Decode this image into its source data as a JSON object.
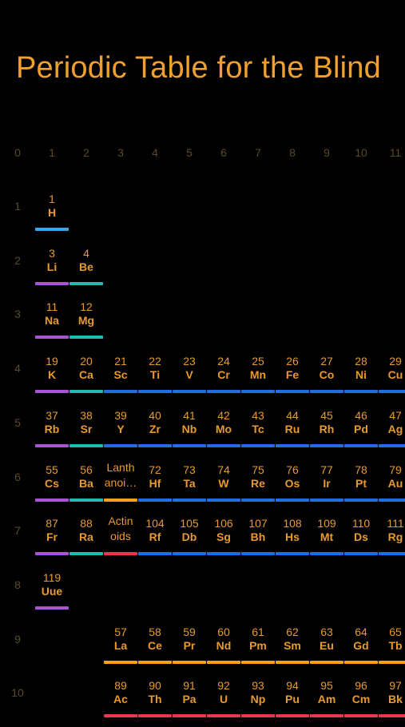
{
  "title": "Periodic Table for the Blind",
  "colors": {
    "alkali": "#a855d8",
    "alkaline": "#22b8b0",
    "hydrogen": "#3aa8e8",
    "transition": "#1f6fe0",
    "lanthanide": "#f5a020",
    "actinide": "#e8384a"
  },
  "columns": [
    "0",
    "1",
    "2",
    "3",
    "4",
    "5",
    "6",
    "7",
    "8",
    "9",
    "10",
    "11"
  ],
  "rows": [
    "1",
    "2",
    "3",
    "4",
    "5",
    "6",
    "7",
    "8",
    "9",
    "10"
  ],
  "cells": [
    {
      "row": 1,
      "col": 1,
      "num": "1",
      "sym": "H",
      "color": "#3aa8e8"
    },
    {
      "row": 2,
      "col": 1,
      "num": "3",
      "sym": "Li",
      "color": "#a855d8"
    },
    {
      "row": 2,
      "col": 2,
      "num": "4",
      "sym": "Be",
      "color": "#22b8b0"
    },
    {
      "row": 3,
      "col": 1,
      "num": "11",
      "sym": "Na",
      "color": "#a855d8"
    },
    {
      "row": 3,
      "col": 2,
      "num": "12",
      "sym": "Mg",
      "color": "#22b8b0"
    },
    {
      "row": 4,
      "col": 1,
      "num": "19",
      "sym": "K",
      "color": "#a855d8"
    },
    {
      "row": 4,
      "col": 2,
      "num": "20",
      "sym": "Ca",
      "color": "#22b8b0"
    },
    {
      "row": 4,
      "col": 3,
      "num": "21",
      "sym": "Sc",
      "color": "#1f6fe0"
    },
    {
      "row": 4,
      "col": 4,
      "num": "22",
      "sym": "Ti",
      "color": "#1f6fe0"
    },
    {
      "row": 4,
      "col": 5,
      "num": "23",
      "sym": "V",
      "color": "#1f6fe0"
    },
    {
      "row": 4,
      "col": 6,
      "num": "24",
      "sym": "Cr",
      "color": "#1f6fe0"
    },
    {
      "row": 4,
      "col": 7,
      "num": "25",
      "sym": "Mn",
      "color": "#1f6fe0"
    },
    {
      "row": 4,
      "col": 8,
      "num": "26",
      "sym": "Fe",
      "color": "#1f6fe0"
    },
    {
      "row": 4,
      "col": 9,
      "num": "27",
      "sym": "Co",
      "color": "#1f6fe0"
    },
    {
      "row": 4,
      "col": 10,
      "num": "28",
      "sym": "Ni",
      "color": "#1f6fe0"
    },
    {
      "row": 4,
      "col": 11,
      "num": "29",
      "sym": "Cu",
      "color": "#1f6fe0"
    },
    {
      "row": 5,
      "col": 1,
      "num": "37",
      "sym": "Rb",
      "color": "#a855d8"
    },
    {
      "row": 5,
      "col": 2,
      "num": "38",
      "sym": "Sr",
      "color": "#22b8b0"
    },
    {
      "row": 5,
      "col": 3,
      "num": "39",
      "sym": "Y",
      "color": "#1f6fe0"
    },
    {
      "row": 5,
      "col": 4,
      "num": "40",
      "sym": "Zr",
      "color": "#1f6fe0"
    },
    {
      "row": 5,
      "col": 5,
      "num": "41",
      "sym": "Nb",
      "color": "#1f6fe0"
    },
    {
      "row": 5,
      "col": 6,
      "num": "42",
      "sym": "Mo",
      "color": "#1f6fe0"
    },
    {
      "row": 5,
      "col": 7,
      "num": "43",
      "sym": "Tc",
      "color": "#1f6fe0"
    },
    {
      "row": 5,
      "col": 8,
      "num": "44",
      "sym": "Ru",
      "color": "#1f6fe0"
    },
    {
      "row": 5,
      "col": 9,
      "num": "45",
      "sym": "Rh",
      "color": "#1f6fe0"
    },
    {
      "row": 5,
      "col": 10,
      "num": "46",
      "sym": "Pd",
      "color": "#1f6fe0"
    },
    {
      "row": 5,
      "col": 11,
      "num": "47",
      "sym": "Ag",
      "color": "#1f6fe0"
    },
    {
      "row": 6,
      "col": 1,
      "num": "55",
      "sym": "Cs",
      "color": "#a855d8"
    },
    {
      "row": 6,
      "col": 2,
      "num": "56",
      "sym": "Ba",
      "color": "#22b8b0"
    },
    {
      "row": 6,
      "col": 3,
      "ref": "Lanth anoi…",
      "color": "#f5a020"
    },
    {
      "row": 6,
      "col": 4,
      "num": "72",
      "sym": "Hf",
      "color": "#1f6fe0"
    },
    {
      "row": 6,
      "col": 5,
      "num": "73",
      "sym": "Ta",
      "color": "#1f6fe0"
    },
    {
      "row": 6,
      "col": 6,
      "num": "74",
      "sym": "W",
      "color": "#1f6fe0"
    },
    {
      "row": 6,
      "col": 7,
      "num": "75",
      "sym": "Re",
      "color": "#1f6fe0"
    },
    {
      "row": 6,
      "col": 8,
      "num": "76",
      "sym": "Os",
      "color": "#1f6fe0"
    },
    {
      "row": 6,
      "col": 9,
      "num": "77",
      "sym": "Ir",
      "color": "#1f6fe0"
    },
    {
      "row": 6,
      "col": 10,
      "num": "78",
      "sym": "Pt",
      "color": "#1f6fe0"
    },
    {
      "row": 6,
      "col": 11,
      "num": "79",
      "sym": "Au",
      "color": "#1f6fe0"
    },
    {
      "row": 7,
      "col": 1,
      "num": "87",
      "sym": "Fr",
      "color": "#a855d8"
    },
    {
      "row": 7,
      "col": 2,
      "num": "88",
      "sym": "Ra",
      "color": "#22b8b0"
    },
    {
      "row": 7,
      "col": 3,
      "ref": "Actin oids",
      "color": "#e8384a"
    },
    {
      "row": 7,
      "col": 4,
      "num": "104",
      "sym": "Rf",
      "color": "#1f6fe0"
    },
    {
      "row": 7,
      "col": 5,
      "num": "105",
      "sym": "Db",
      "color": "#1f6fe0"
    },
    {
      "row": 7,
      "col": 6,
      "num": "106",
      "sym": "Sg",
      "color": "#1f6fe0"
    },
    {
      "row": 7,
      "col": 7,
      "num": "107",
      "sym": "Bh",
      "color": "#1f6fe0"
    },
    {
      "row": 7,
      "col": 8,
      "num": "108",
      "sym": "Hs",
      "color": "#1f6fe0"
    },
    {
      "row": 7,
      "col": 9,
      "num": "109",
      "sym": "Mt",
      "color": "#1f6fe0"
    },
    {
      "row": 7,
      "col": 10,
      "num": "110",
      "sym": "Ds",
      "color": "#1f6fe0"
    },
    {
      "row": 7,
      "col": 11,
      "num": "111",
      "sym": "Rg",
      "color": "#1f6fe0"
    },
    {
      "row": 8,
      "col": 1,
      "num": "119",
      "sym": "Uue",
      "color": "#a855d8"
    },
    {
      "row": 9,
      "col": 3,
      "num": "57",
      "sym": "La",
      "color": "#f5a020"
    },
    {
      "row": 9,
      "col": 4,
      "num": "58",
      "sym": "Ce",
      "color": "#f5a020"
    },
    {
      "row": 9,
      "col": 5,
      "num": "59",
      "sym": "Pr",
      "color": "#f5a020"
    },
    {
      "row": 9,
      "col": 6,
      "num": "60",
      "sym": "Nd",
      "color": "#f5a020"
    },
    {
      "row": 9,
      "col": 7,
      "num": "61",
      "sym": "Pm",
      "color": "#f5a020"
    },
    {
      "row": 9,
      "col": 8,
      "num": "62",
      "sym": "Sm",
      "color": "#f5a020"
    },
    {
      "row": 9,
      "col": 9,
      "num": "63",
      "sym": "Eu",
      "color": "#f5a020"
    },
    {
      "row": 9,
      "col": 10,
      "num": "64",
      "sym": "Gd",
      "color": "#f5a020"
    },
    {
      "row": 9,
      "col": 11,
      "num": "65",
      "sym": "Tb",
      "color": "#f5a020"
    },
    {
      "row": 10,
      "col": 3,
      "num": "89",
      "sym": "Ac",
      "color": "#e8384a"
    },
    {
      "row": 10,
      "col": 4,
      "num": "90",
      "sym": "Th",
      "color": "#e8384a"
    },
    {
      "row": 10,
      "col": 5,
      "num": "91",
      "sym": "Pa",
      "color": "#e8384a"
    },
    {
      "row": 10,
      "col": 6,
      "num": "92",
      "sym": "U",
      "color": "#e8384a"
    },
    {
      "row": 10,
      "col": 7,
      "num": "93",
      "sym": "Np",
      "color": "#e8384a"
    },
    {
      "row": 10,
      "col": 8,
      "num": "94",
      "sym": "Pu",
      "color": "#e8384a"
    },
    {
      "row": 10,
      "col": 9,
      "num": "95",
      "sym": "Am",
      "color": "#e8384a"
    },
    {
      "row": 10,
      "col": 10,
      "num": "96",
      "sym": "Cm",
      "color": "#e8384a"
    },
    {
      "row": 10,
      "col": 11,
      "num": "97",
      "sym": "Bk",
      "color": "#e8384a"
    }
  ]
}
